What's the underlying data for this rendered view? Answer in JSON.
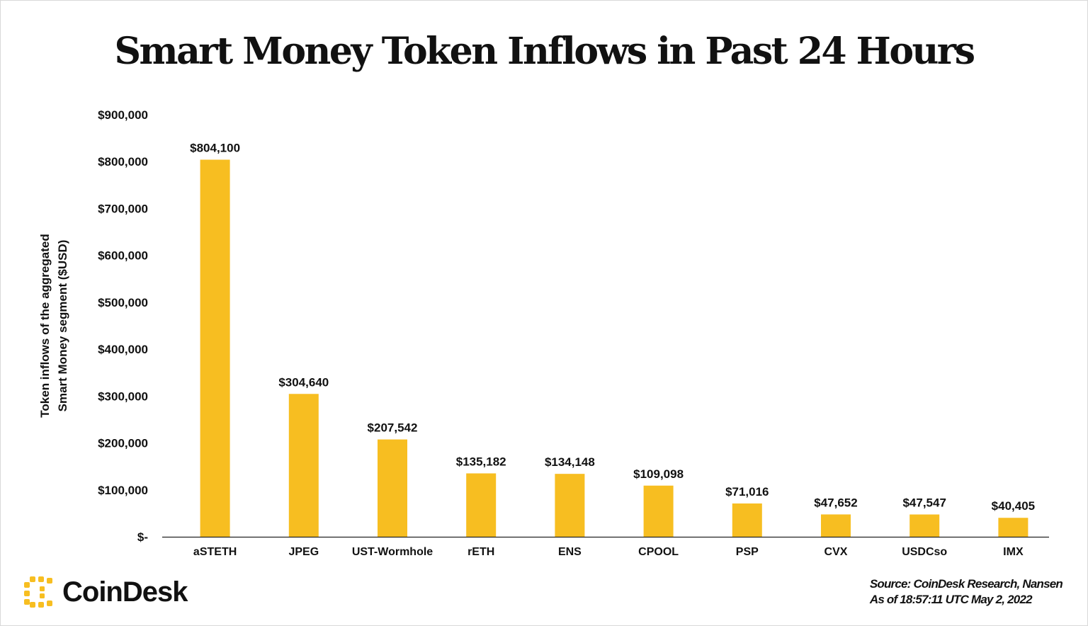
{
  "title": "Smart Money Token Inflows in Past 24 Hours",
  "brand": {
    "name": "CoinDesk",
    "accent_color": "#F7BE21"
  },
  "source": {
    "line1": "Source: CoinDesk Research, Nansen",
    "line2": "As of 18:57:11 UTC May 2, 2022"
  },
  "chart_data": {
    "type": "bar",
    "title": "Smart Money Token Inflows in Past 24 Hours",
    "ylabel": "Token inflows of the aggregated Smart Money segment ($USD)",
    "ylabel_lines": [
      "Token inflows of the aggregated",
      "Smart Money segment ($USD)"
    ],
    "xlabel": "",
    "categories": [
      "aSTETH",
      "JPEG",
      "UST-Wormhole",
      "rETH",
      "ENS",
      "CPOOL",
      "PSP",
      "CVX",
      "USDCso",
      "IMX"
    ],
    "values": [
      804100,
      304640,
      207542,
      135182,
      134148,
      109098,
      71016,
      47652,
      47547,
      40405
    ],
    "data_labels": [
      "$804,100",
      "$304,640",
      "$207,542",
      "$135,182",
      "$134,148",
      "$109,098",
      "$71,016",
      "$47,652",
      "$47,547",
      "$40,405"
    ],
    "ylim": [
      0,
      900000
    ],
    "y_ticks": [
      0,
      100000,
      200000,
      300000,
      400000,
      500000,
      600000,
      700000,
      800000,
      900000
    ],
    "y_tick_labels": [
      "$-",
      "$100,000",
      "$200,000",
      "$300,000",
      "$400,000",
      "$500,000",
      "$600,000",
      "$700,000",
      "$800,000",
      "$900,000"
    ],
    "grid": false,
    "legend": "none",
    "bar_color": "#F7BE21"
  }
}
